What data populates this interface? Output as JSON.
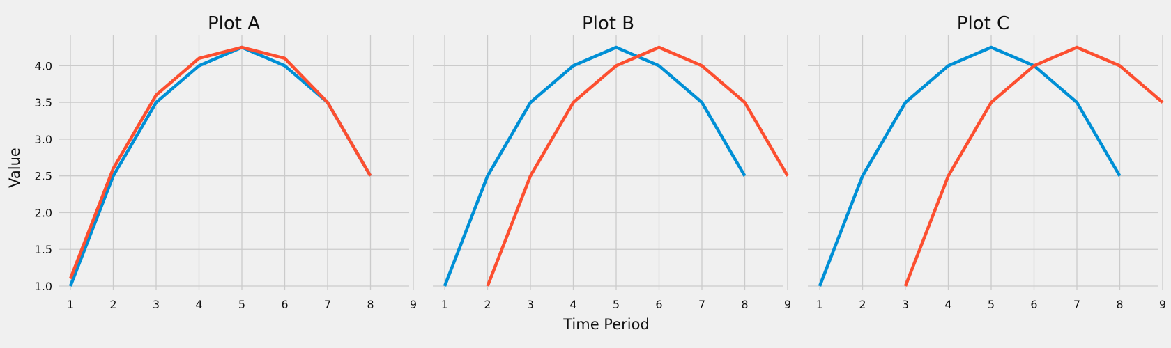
{
  "chart_data": {
    "type": "line",
    "xlabel": "Time Period",
    "ylabel": "Value",
    "xlim": [
      1,
      9
    ],
    "ylim": [
      1.0,
      4.25
    ],
    "xticks": [
      "1",
      "2",
      "3",
      "4",
      "5",
      "6",
      "7",
      "8",
      "9"
    ],
    "yticks": [
      "1.0",
      "1.5",
      "2.0",
      "2.5",
      "3.0",
      "3.5",
      "4.0"
    ],
    "grid": true,
    "colors": [
      "#008fd5",
      "#fc4f30"
    ],
    "panels": [
      {
        "title": "Plot A",
        "series": [
          {
            "x": [
              1,
              2,
              3,
              4,
              5,
              6,
              7,
              8
            ],
            "values": [
              1.0,
              2.5,
              3.5,
              4.0,
              4.25,
              4.0,
              3.5,
              2.5
            ],
            "color": "#008fd5"
          },
          {
            "x": [
              1,
              2,
              3,
              4,
              5,
              6,
              7,
              8
            ],
            "values": [
              1.1,
              2.6,
              3.6,
              4.1,
              4.25,
              4.1,
              3.5,
              2.5
            ],
            "color": "#fc4f30"
          }
        ]
      },
      {
        "title": "Plot B",
        "series": [
          {
            "x": [
              1,
              2,
              3,
              4,
              5,
              6,
              7,
              8
            ],
            "values": [
              1.0,
              2.5,
              3.5,
              4.0,
              4.25,
              4.0,
              3.5,
              2.5
            ],
            "color": "#008fd5"
          },
          {
            "x": [
              2,
              3,
              4,
              5,
              6,
              7,
              8,
              9
            ],
            "values": [
              1.0,
              2.5,
              3.5,
              4.0,
              4.25,
              4.0,
              3.5,
              2.5
            ],
            "color": "#fc4f30"
          }
        ]
      },
      {
        "title": "Plot C",
        "series": [
          {
            "x": [
              1,
              2,
              3,
              4,
              5,
              6,
              7,
              8
            ],
            "values": [
              1.0,
              2.5,
              3.5,
              4.0,
              4.25,
              4.0,
              3.5,
              2.5
            ],
            "color": "#008fd5"
          },
          {
            "x": [
              3,
              4,
              5,
              6,
              7,
              8,
              9
            ],
            "values": [
              1.0,
              2.5,
              3.5,
              4.0,
              4.25,
              4.0,
              3.5
            ],
            "color": "#fc4f30"
          }
        ]
      }
    ]
  }
}
